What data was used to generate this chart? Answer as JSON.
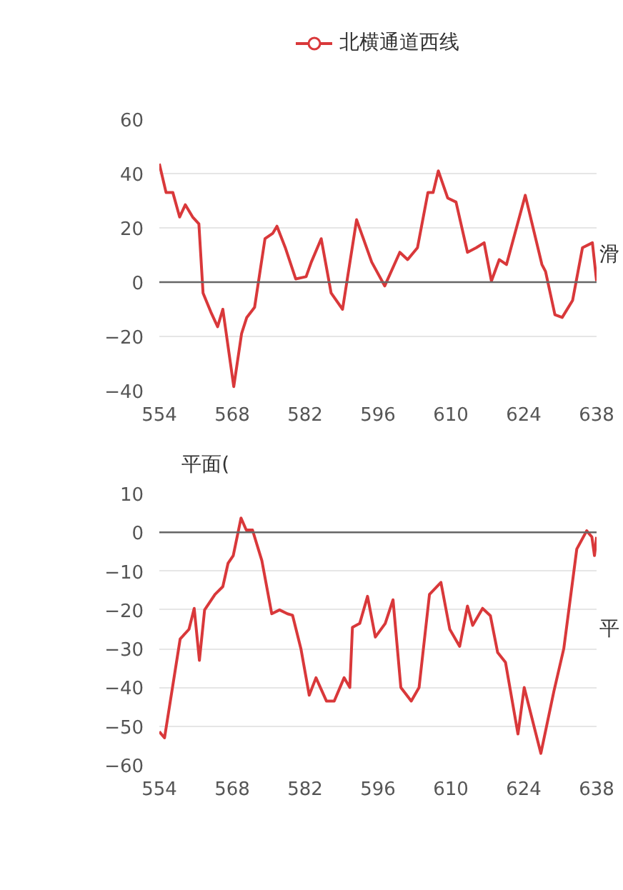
{
  "chart_data": [
    {
      "type": "line",
      "xlabel": "滑",
      "ref_lines": [
        {
          "axis": "y",
          "value": 0,
          "color": "#666666"
        }
      ],
      "legend": "top",
      "grid": "y",
      "xlim": [
        554,
        638
      ],
      "xticks": [
        554,
        568,
        582,
        596,
        610,
        624,
        638
      ],
      "ylim": [
        -40,
        60
      ],
      "yticks": [
        -40,
        -20,
        0,
        20,
        40,
        60
      ],
      "series": [
        {
          "name": "北横通道西线",
          "color": "#d9383a",
          "x": [
            554,
            555.3,
            556.6,
            557.9,
            559,
            560.4,
            561.6,
            562.4,
            563.9,
            565.2,
            566.2,
            568.3,
            569.8,
            570.8,
            572.3,
            574.3,
            575.8,
            576.6,
            578.2,
            580.2,
            582.2,
            583.2,
            585.1,
            587,
            589.2,
            591.9,
            594.8,
            597.3,
            600.2,
            601.7,
            603.6,
            605.6,
            606.6,
            607.6,
            609.4,
            611,
            613.2,
            614.9,
            616.4,
            617.8,
            619.3,
            620.7,
            624.3,
            627.5,
            628.2,
            630,
            631.4,
            633.4,
            635.3,
            637.2,
            638
          ],
          "values": [
            43.6,
            33,
            33,
            24,
            28.5,
            24,
            21.5,
            -4,
            -11,
            -16.4,
            -10,
            -38.5,
            -19,
            -13,
            -9.3,
            16,
            18,
            20.6,
            12.7,
            1.2,
            2,
            7.4,
            16,
            -4,
            -10,
            23,
            7.4,
            -1.4,
            11,
            8.3,
            12.7,
            33,
            33,
            41,
            31,
            29.5,
            11,
            12.7,
            14.5,
            0.4,
            8.3,
            6.5,
            32,
            6.5,
            3.9,
            -12,
            -13,
            -6.7,
            12.7,
            14.5,
            0.4
          ]
        }
      ]
    },
    {
      "type": "line",
      "xlabel": "平",
      "ref_lines": [
        {
          "axis": "y",
          "value": 0,
          "color": "#666666"
        }
      ],
      "ylabel": "平面(",
      "grid": "y",
      "xlim": [
        554,
        638
      ],
      "xticks": [
        554,
        568,
        582,
        596,
        610,
        624,
        638
      ],
      "ylim": [
        -60,
        10
      ],
      "yticks": [
        -60,
        -50,
        -40,
        -30,
        -20,
        -10,
        0,
        10
      ],
      "series": [
        {
          "color": "#d9383a",
          "x": [
            554,
            555,
            558,
            559.7,
            560.7,
            561.7,
            562.7,
            564.7,
            566.2,
            567.2,
            568.2,
            569.7,
            570.7,
            571.9,
            573.7,
            575.6,
            577.1,
            578.6,
            579.6,
            581.2,
            582.8,
            584.1,
            586.1,
            587.6,
            589.5,
            590.6,
            591.1,
            592.5,
            594,
            595.5,
            597.4,
            598.9,
            600.4,
            602.4,
            603.9,
            605.9,
            608.1,
            609.8,
            611.7,
            613.2,
            614.2,
            616.1,
            617.6,
            619,
            620.5,
            622.9,
            624.1,
            625.9,
            627.3,
            629.8,
            631.7,
            634.2,
            636.1,
            637.1,
            637.6,
            638
          ],
          "values": [
            -51.4,
            -53,
            -27.5,
            -25,
            -19.6,
            -33,
            -20,
            -16,
            -14,
            -8,
            -6,
            3.7,
            0.6,
            0.6,
            -7.3,
            -21,
            -20,
            -21,
            -21.4,
            -30,
            -42,
            -37.5,
            -43.5,
            -43.5,
            -37.5,
            -40,
            -24.5,
            -23.5,
            -16.5,
            -27,
            -23.5,
            -17.4,
            -40,
            -43.5,
            -40,
            -16,
            -12.9,
            -25,
            -29.4,
            -19,
            -24,
            -19.6,
            -21.5,
            -31,
            -33.5,
            -52,
            -40,
            -49.6,
            -57,
            -41,
            -30,
            -4.3,
            0.4,
            -1.2,
            -6,
            -1.2
          ]
        }
      ]
    }
  ]
}
